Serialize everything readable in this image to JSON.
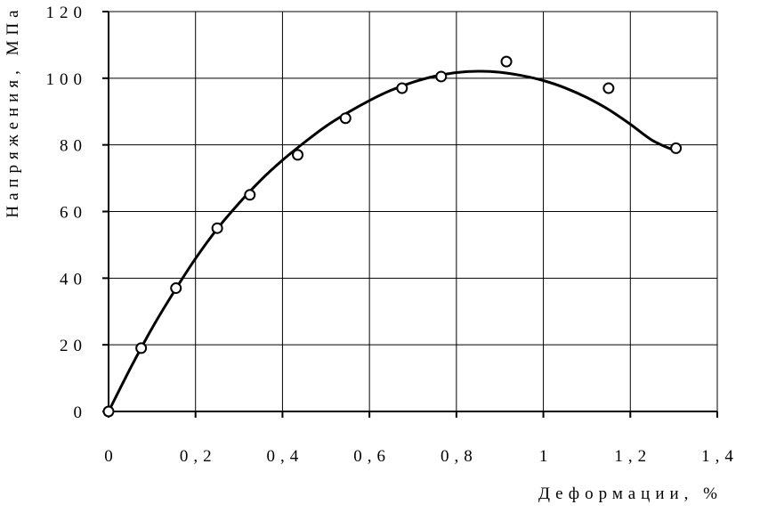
{
  "chart_data": {
    "type": "scatter",
    "xlabel": "Деформации, %",
    "ylabel": "Напряжения, МПа",
    "xlim": [
      0,
      1.4
    ],
    "ylim": [
      0,
      120
    ],
    "x_ticks": [
      0,
      0.2,
      0.4,
      0.6,
      0.8,
      1,
      1.2,
      1.4
    ],
    "x_tick_labels": [
      "0",
      "0,2",
      "0,4",
      "0,6",
      "0,8",
      "1",
      "1,2",
      "1,4"
    ],
    "y_ticks": [
      0,
      20,
      40,
      60,
      80,
      100,
      120
    ],
    "y_tick_labels": [
      "0",
      "20",
      "40",
      "60",
      "80",
      "100",
      "120"
    ],
    "grid": true,
    "series": [
      {
        "kind": "points",
        "marker": "open-circle",
        "x": [
          0,
          0.075,
          0.155,
          0.25,
          0.325,
          0.435,
          0.545,
          0.675,
          0.765,
          0.915,
          1.15,
          1.305
        ],
        "y": [
          0,
          19,
          37,
          55,
          65,
          77,
          88,
          97,
          100.5,
          105,
          97,
          79
        ]
      },
      {
        "kind": "curve",
        "x": [
          0,
          0.05,
          0.1,
          0.15,
          0.2,
          0.25,
          0.3,
          0.35,
          0.4,
          0.45,
          0.5,
          0.55,
          0.6,
          0.65,
          0.7,
          0.75,
          0.8,
          0.85,
          0.9,
          0.95,
          1.0,
          1.05,
          1.1,
          1.15,
          1.2,
          1.25,
          1.3
        ],
        "y": [
          0,
          12.9,
          25.0,
          35.8,
          45.9,
          54.8,
          62.5,
          69.4,
          75.4,
          80.7,
          85.6,
          89.7,
          93.3,
          96.4,
          98.8,
          100.6,
          101.7,
          102.1,
          101.8,
          100.8,
          99.3,
          97.1,
          94.2,
          90.6,
          86.2,
          81.4,
          78.4
        ]
      }
    ]
  }
}
